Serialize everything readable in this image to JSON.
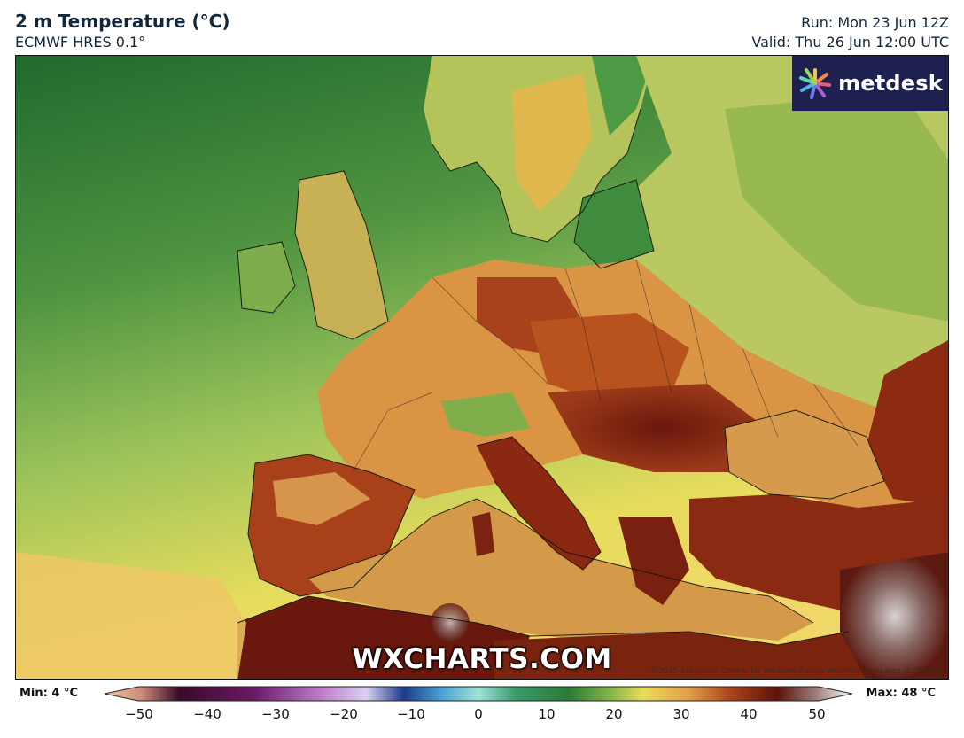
{
  "header": {
    "title": "2 m Temperature (°C)",
    "model": "ECMWF HRES 0.1°",
    "run": "Run: Mon 23 Jun 12Z",
    "valid": "Valid: Thu 26 Jun 12:00 UTC"
  },
  "map": {
    "logo_text": "metdesk",
    "watermark": "WXCHARTS.COM",
    "copyright": "©2025 European Centre for Medium-Range Weather Forecasts (ECMWF)",
    "colors": {
      "ocean_cool": "#2f7f3a",
      "ocean_mid": "#6aa64a",
      "ocean_warm": "#e8d85a",
      "land_warm": "#d9a04a",
      "land_hot": "#8a2a12",
      "land_extreme": "#5c140c",
      "desert_peak": "#c8c0c0",
      "coastline": "#111111"
    }
  },
  "legend": {
    "min_label": "Min: 4 °C",
    "max_label": "Max: 48 °C",
    "ticks": [
      "−50",
      "−40",
      "−30",
      "−20",
      "−10",
      "0",
      "10",
      "20",
      "30",
      "40",
      "50"
    ],
    "tick_values": [
      -50,
      -40,
      -30,
      -20,
      -10,
      0,
      10,
      20,
      30,
      40,
      50
    ],
    "range": [
      -50,
      50
    ]
  }
}
